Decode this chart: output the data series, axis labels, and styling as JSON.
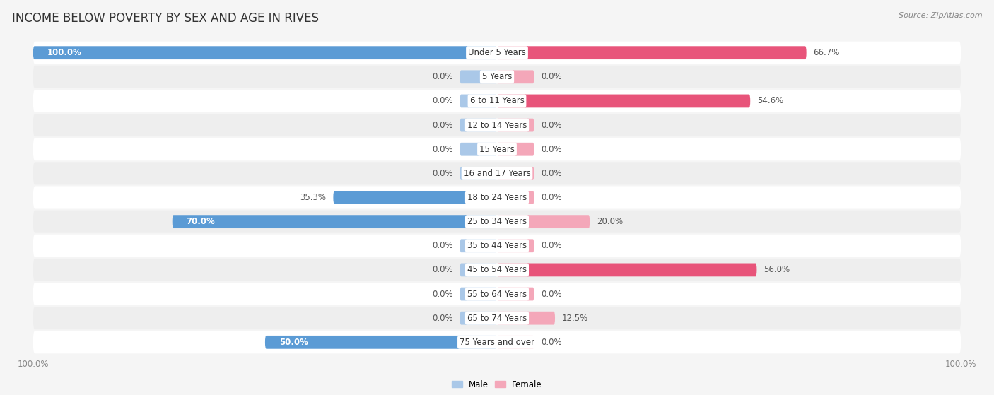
{
  "title": "INCOME BELOW POVERTY BY SEX AND AGE IN RIVES",
  "source": "Source: ZipAtlas.com",
  "categories": [
    "Under 5 Years",
    "5 Years",
    "6 to 11 Years",
    "12 to 14 Years",
    "15 Years",
    "16 and 17 Years",
    "18 to 24 Years",
    "25 to 34 Years",
    "35 to 44 Years",
    "45 to 54 Years",
    "55 to 64 Years",
    "65 to 74 Years",
    "75 Years and over"
  ],
  "male": [
    100.0,
    0.0,
    0.0,
    0.0,
    0.0,
    0.0,
    35.3,
    70.0,
    0.0,
    0.0,
    0.0,
    0.0,
    50.0
  ],
  "female": [
    66.7,
    0.0,
    54.6,
    0.0,
    0.0,
    0.0,
    0.0,
    20.0,
    0.0,
    56.0,
    0.0,
    12.5,
    0.0
  ],
  "male_color_strong": "#5b9bd5",
  "male_color_weak": "#aac8e8",
  "female_color_strong": "#e8547a",
  "female_color_weak": "#f4a7b9",
  "row_colors": [
    "#f0f0f0",
    "#e8e8e8"
  ],
  "bg_color": "#f5f5f5",
  "title_fontsize": 12,
  "label_fontsize": 8.5,
  "value_fontsize": 8.5,
  "tick_fontsize": 8.5,
  "max_val": 100.0,
  "stub_val": 8.0
}
